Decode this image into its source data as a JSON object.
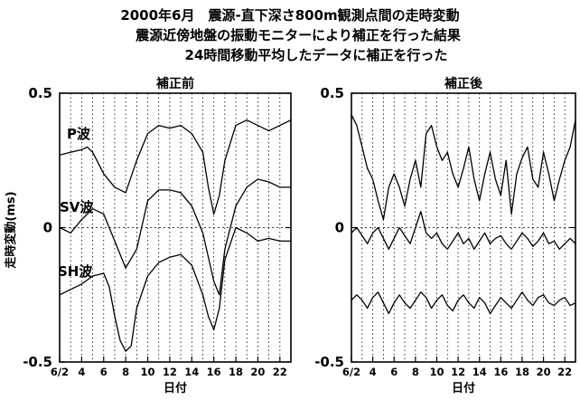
{
  "header": {
    "line1": "2000年6月　震源-直下深さ800m観測点間の走時変動",
    "line2": "震源近傍地盤の振動モニターにより補正を行った結果",
    "line3": "24時間移動平均したデータに補正を行った"
  },
  "chart_data": [
    {
      "type": "line",
      "title": "補正前",
      "xlabel": "日付",
      "ylabel": "走時変動(ms)",
      "ylim": [
        -0.5,
        0.5
      ],
      "xlim": [
        2,
        23
      ],
      "y_ticks": [
        {
          "value": 0.5,
          "label": "0.5"
        },
        {
          "value": 0,
          "label": "0"
        },
        {
          "value": -0.5,
          "label": "-0.5"
        }
      ],
      "x_ticks": [
        {
          "value": 2,
          "label": "6/2"
        },
        {
          "value": 4,
          "label": "4"
        },
        {
          "value": 6,
          "label": "6"
        },
        {
          "value": 8,
          "label": "8"
        },
        {
          "value": 10,
          "label": "10"
        },
        {
          "value": 12,
          "label": "12"
        },
        {
          "value": 14,
          "label": "14"
        },
        {
          "value": 16,
          "label": "16"
        },
        {
          "value": 18,
          "label": "18"
        },
        {
          "value": 20,
          "label": "20"
        },
        {
          "value": 22,
          "label": "22"
        }
      ],
      "grid": "vertical dotted lines at every day",
      "series": [
        {
          "name": "P波",
          "x": [
            2,
            3,
            4,
            4.5,
            5,
            6,
            7,
            8,
            9,
            10,
            11,
            12,
            13,
            14,
            15,
            15.5,
            16,
            16.5,
            17,
            18,
            19,
            20,
            21,
            22,
            23
          ],
          "values": [
            0.27,
            0.28,
            0.29,
            0.3,
            0.28,
            0.2,
            0.15,
            0.13,
            0.25,
            0.35,
            0.38,
            0.37,
            0.38,
            0.35,
            0.28,
            0.15,
            0.05,
            0.12,
            0.25,
            0.38,
            0.4,
            0.38,
            0.36,
            0.38,
            0.4
          ]
        },
        {
          "name": "SV波",
          "x": [
            2,
            3,
            4,
            5,
            6,
            7,
            8,
            9,
            10,
            11,
            12,
            13,
            14,
            15,
            16,
            16.5,
            17,
            18,
            19,
            20,
            21,
            22,
            23
          ],
          "values": [
            0.0,
            -0.02,
            0.03,
            0.07,
            0.05,
            -0.05,
            -0.15,
            -0.08,
            0.1,
            0.14,
            0.14,
            0.13,
            0.08,
            -0.02,
            -0.2,
            -0.25,
            -0.08,
            0.08,
            0.15,
            0.18,
            0.17,
            0.15,
            0.15
          ]
        },
        {
          "name": "SH波",
          "x": [
            2,
            3,
            4,
            5,
            6,
            6.5,
            7,
            7.5,
            8,
            8.5,
            9,
            10,
            11,
            12,
            13,
            14,
            15,
            15.5,
            16,
            16.5,
            17,
            18,
            19,
            20,
            21,
            22,
            23
          ],
          "values": [
            -0.25,
            -0.23,
            -0.21,
            -0.18,
            -0.17,
            -0.22,
            -0.33,
            -0.42,
            -0.46,
            -0.44,
            -0.3,
            -0.18,
            -0.13,
            -0.11,
            -0.1,
            -0.14,
            -0.25,
            -0.33,
            -0.38,
            -0.3,
            -0.12,
            0.0,
            -0.02,
            -0.05,
            -0.04,
            -0.05,
            -0.05
          ]
        }
      ]
    },
    {
      "type": "line",
      "title": "補正後",
      "xlabel": "日付",
      "ylim": [
        -0.5,
        0.5
      ],
      "xlim": [
        2,
        23
      ],
      "y_ticks": [
        {
          "value": 0.5,
          "label": "0.5"
        },
        {
          "value": 0,
          "label": "0"
        },
        {
          "value": -0.5,
          "label": "-0.5"
        }
      ],
      "x_ticks": [
        {
          "value": 2,
          "label": "6/2"
        },
        {
          "value": 4,
          "label": "4"
        },
        {
          "value": 6,
          "label": "6"
        },
        {
          "value": 8,
          "label": "8"
        },
        {
          "value": 10,
          "label": "10"
        },
        {
          "value": 12,
          "label": "12"
        },
        {
          "value": 14,
          "label": "14"
        },
        {
          "value": 16,
          "label": "16"
        },
        {
          "value": 18,
          "label": "18"
        },
        {
          "value": 20,
          "label": "20"
        },
        {
          "value": 22,
          "label": "22"
        }
      ],
      "grid": "vertical dotted lines at every day",
      "series": [
        {
          "x": [
            2,
            2.5,
            3,
            3.5,
            4,
            4.5,
            5,
            5.5,
            6,
            6.5,
            7,
            7.5,
            8,
            8.5,
            9,
            9.5,
            10,
            10.5,
            11,
            11.5,
            12,
            12.5,
            13,
            13.5,
            14,
            14.5,
            15,
            15.5,
            16,
            16.5,
            17,
            17.5,
            18,
            18.5,
            19,
            19.5,
            20,
            20.5,
            21,
            21.5,
            22,
            22.5,
            23
          ],
          "values": [
            0.42,
            0.38,
            0.3,
            0.22,
            0.18,
            0.1,
            0.03,
            0.15,
            0.2,
            0.15,
            0.08,
            0.18,
            0.25,
            0.15,
            0.35,
            0.38,
            0.3,
            0.25,
            0.28,
            0.2,
            0.15,
            0.22,
            0.3,
            0.18,
            0.1,
            0.2,
            0.28,
            0.18,
            0.12,
            0.25,
            0.05,
            0.2,
            0.26,
            0.3,
            0.18,
            0.15,
            0.28,
            0.2,
            0.1,
            0.18,
            0.25,
            0.3,
            0.4
          ]
        },
        {
          "x": [
            2,
            2.5,
            3,
            3.5,
            4,
            4.5,
            5,
            5.5,
            6,
            6.5,
            7,
            7.5,
            8,
            8.5,
            9,
            9.5,
            10,
            10.5,
            11,
            11.5,
            12,
            12.5,
            13,
            13.5,
            14,
            14.5,
            15,
            15.5,
            16,
            16.5,
            17,
            17.5,
            18,
            18.5,
            19,
            19.5,
            20,
            20.5,
            21,
            21.5,
            22,
            22.5,
            23
          ],
          "values": [
            -0.02,
            0.0,
            -0.03,
            -0.06,
            -0.02,
            0.0,
            -0.04,
            -0.08,
            -0.04,
            0.0,
            -0.03,
            -0.06,
            0.0,
            0.06,
            -0.02,
            -0.04,
            -0.02,
            -0.06,
            -0.08,
            -0.05,
            -0.02,
            -0.06,
            -0.04,
            -0.08,
            -0.05,
            -0.02,
            -0.06,
            -0.04,
            -0.03,
            -0.06,
            -0.08,
            -0.05,
            -0.02,
            -0.04,
            -0.07,
            -0.05,
            -0.02,
            -0.06,
            -0.05,
            -0.08,
            -0.06,
            -0.04,
            -0.06
          ]
        },
        {
          "x": [
            2,
            2.5,
            3,
            3.5,
            4,
            4.5,
            5,
            5.5,
            6,
            6.5,
            7,
            7.5,
            8,
            8.5,
            9,
            9.5,
            10,
            10.5,
            11,
            11.5,
            12,
            12.5,
            13,
            13.5,
            14,
            14.5,
            15,
            15.5,
            16,
            16.5,
            17,
            17.5,
            18,
            18.5,
            19,
            19.5,
            20,
            20.5,
            21,
            21.5,
            22,
            22.5,
            23
          ],
          "values": [
            -0.27,
            -0.25,
            -0.27,
            -0.3,
            -0.26,
            -0.24,
            -0.28,
            -0.32,
            -0.28,
            -0.25,
            -0.28,
            -0.3,
            -0.27,
            -0.24,
            -0.26,
            -0.3,
            -0.27,
            -0.25,
            -0.29,
            -0.31,
            -0.27,
            -0.25,
            -0.28,
            -0.3,
            -0.26,
            -0.28,
            -0.32,
            -0.29,
            -0.26,
            -0.28,
            -0.3,
            -0.27,
            -0.24,
            -0.27,
            -0.29,
            -0.26,
            -0.25,
            -0.28,
            -0.29,
            -0.27,
            -0.26,
            -0.29,
            -0.28
          ]
        }
      ]
    }
  ]
}
